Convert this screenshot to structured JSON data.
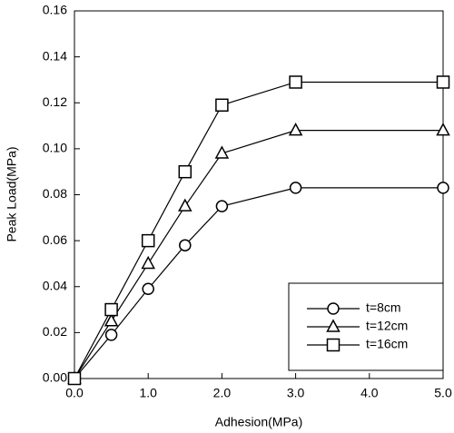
{
  "chart_data": {
    "type": "line",
    "x_label": "Adhesion(MPa)",
    "y_label": "Peak Load(MPa)",
    "x": [
      0,
      0.5,
      1,
      1.5,
      2,
      3,
      5
    ],
    "series": [
      {
        "name": "t=8cm",
        "color": "#000000",
        "marker": "circle",
        "values": [
          0,
          0.019,
          0.039,
          0.058,
          0.075,
          0.083,
          0.083
        ]
      },
      {
        "name": "t=12cm",
        "color": "#000000",
        "marker": "triangle",
        "values": [
          0,
          0.025,
          0.05,
          0.075,
          0.098,
          0.108,
          0.108
        ]
      },
      {
        "name": "t=16cm",
        "color": "#000000",
        "marker": "square",
        "values": [
          0,
          0.03,
          0.06,
          0.09,
          0.119,
          0.129,
          0.129
        ]
      }
    ],
    "xlim": [
      0,
      5
    ],
    "xticks": [
      {
        "value": 0,
        "label": "0.0"
      },
      {
        "value": 1,
        "label": "1.0"
      },
      {
        "value": 2,
        "label": "2.0"
      },
      {
        "value": 3,
        "label": "3.0"
      },
      {
        "value": 4,
        "label": "4.0"
      },
      {
        "value": 5,
        "label": "5.0"
      }
    ],
    "ylim": [
      0,
      0.16
    ],
    "yticks": [
      {
        "value": 0,
        "label": "0.00"
      },
      {
        "value": 0.02,
        "label": "0.02"
      },
      {
        "value": 0.04,
        "label": "0.04"
      },
      {
        "value": 0.06,
        "label": "0.06"
      },
      {
        "value": 0.08,
        "label": "0.08"
      },
      {
        "value": 0.1,
        "label": "0.10"
      },
      {
        "value": 0.12,
        "label": "0.12"
      },
      {
        "value": 0.14,
        "label": "0.14"
      },
      {
        "value": 0.16,
        "label": "0.16"
      }
    ],
    "grid": false,
    "legend": "lower right"
  }
}
